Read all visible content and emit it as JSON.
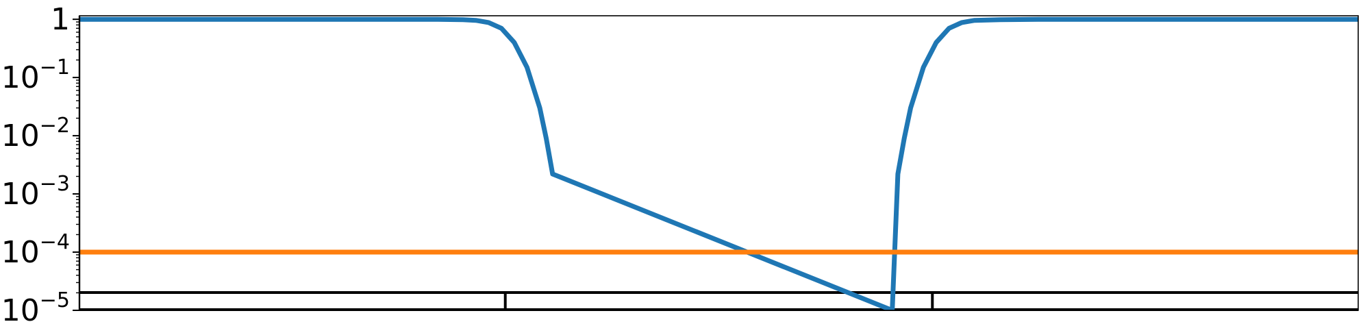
{
  "chart_data": {
    "type": "line",
    "title": "",
    "xlabel": "",
    "ylabel": "",
    "y_scale": "log",
    "ylim": [
      1e-05,
      1.15
    ],
    "xlim": [
      0,
      1
    ],
    "x_ticks_visible": false,
    "grid": false,
    "legend": "none",
    "y_tick_labels": [
      {
        "value": 1,
        "base": "1",
        "exp": ""
      },
      {
        "value": 0.1,
        "base": "10",
        "exp": "−1"
      },
      {
        "value": 0.01,
        "base": "10",
        "exp": "−2"
      },
      {
        "value": 0.001,
        "base": "10",
        "exp": "−3"
      },
      {
        "value": 0.0001,
        "base": "10",
        "exp": "−4"
      },
      {
        "value": 1e-05,
        "base": "10",
        "exp": "−5"
      }
    ],
    "series": [
      {
        "color": "#1f77b4",
        "x": [
          0.0,
          0.1,
          0.2,
          0.25,
          0.28,
          0.3,
          0.31,
          0.32,
          0.33,
          0.34,
          0.35,
          0.36,
          0.365,
          0.37,
          0.6356,
          0.64,
          0.645,
          0.65,
          0.66,
          0.67,
          0.68,
          0.69,
          0.7,
          0.72,
          0.75,
          0.8,
          0.9,
          1.0
        ],
        "y": [
          1.0,
          1.0,
          1.0,
          1.0,
          0.998,
          0.985,
          0.96,
          0.88,
          0.7,
          0.4,
          0.15,
          0.03,
          0.009,
          0.0022,
          1e-05,
          0.0022,
          0.009,
          0.03,
          0.15,
          0.4,
          0.7,
          0.88,
          0.96,
          0.985,
          0.998,
          1.0,
          1.0,
          1.0
        ]
      },
      {
        "color": "#ff7f0e",
        "x": [
          0.0,
          1.0
        ],
        "y": [
          0.0001,
          0.0001
        ]
      }
    ],
    "segment_bar": {
      "color": "#000000",
      "dividers": [
        0.333,
        0.667
      ]
    }
  }
}
